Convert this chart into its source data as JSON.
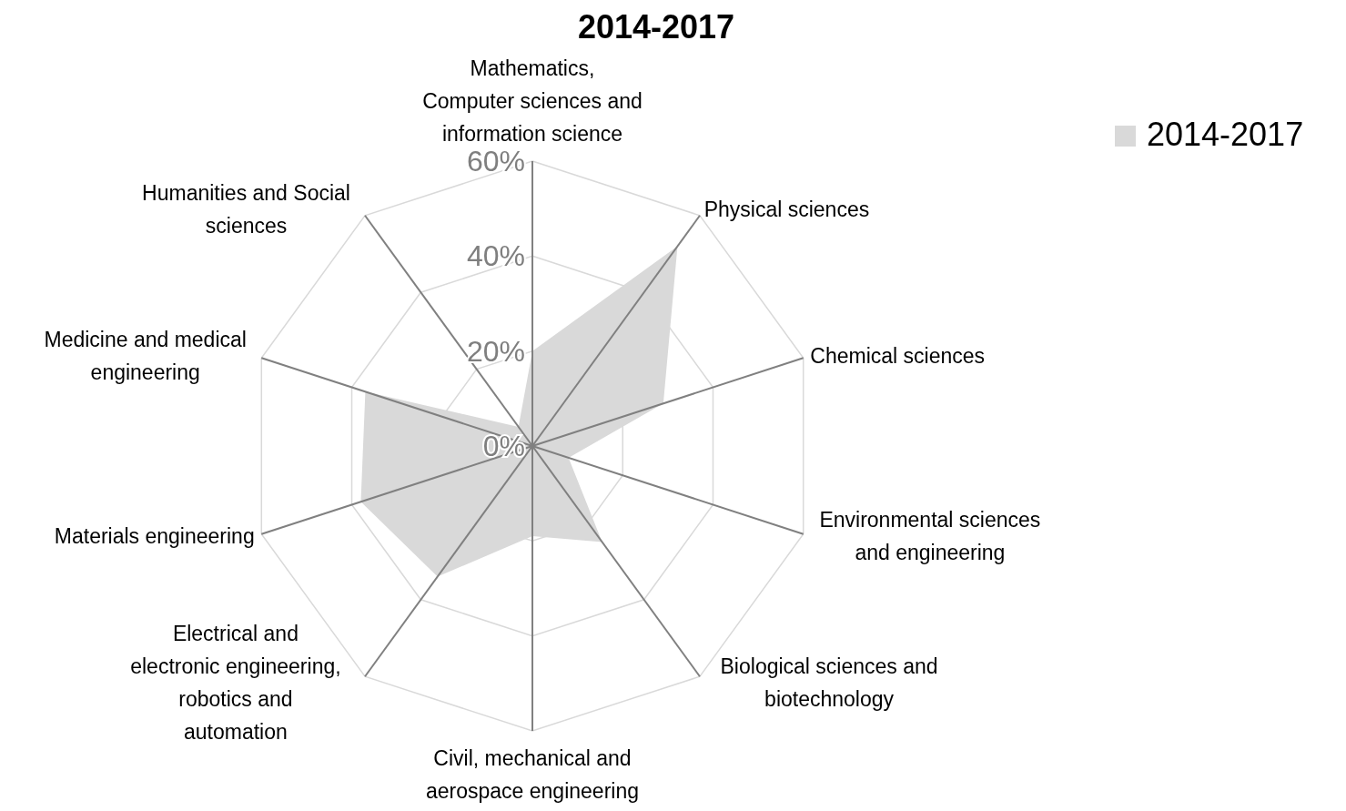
{
  "chart_data": {
    "type": "radar",
    "title": "2014-2017",
    "categories": [
      "Mathematics,\nComputer sciences and\ninformation science",
      "Physical sciences",
      "Chemical sciences",
      "Environmental sciences\nand engineering",
      "Biological sciences and\nbiotechnology",
      "Civil, mechanical and\naerospace engineering",
      "Electrical and\nelectronic engineering,\nrobotics and\nautomation",
      "Materials engineering",
      "Medicine and medical\nengineering",
      "Humanities and Social\nsciences"
    ],
    "series": [
      {
        "name": "2014-2017",
        "color": "#d9d9d9",
        "values": [
          20,
          52,
          29,
          8,
          25,
          19,
          34,
          38,
          37,
          5
        ]
      }
    ],
    "ylim": [
      0,
      60
    ],
    "yticks": [
      {
        "value": 0,
        "label": "0%"
      },
      {
        "value": 20,
        "label": "20%"
      },
      {
        "value": 40,
        "label": "40%"
      },
      {
        "value": 60,
        "label": "60%"
      }
    ],
    "grid": true,
    "legend": "top right"
  }
}
